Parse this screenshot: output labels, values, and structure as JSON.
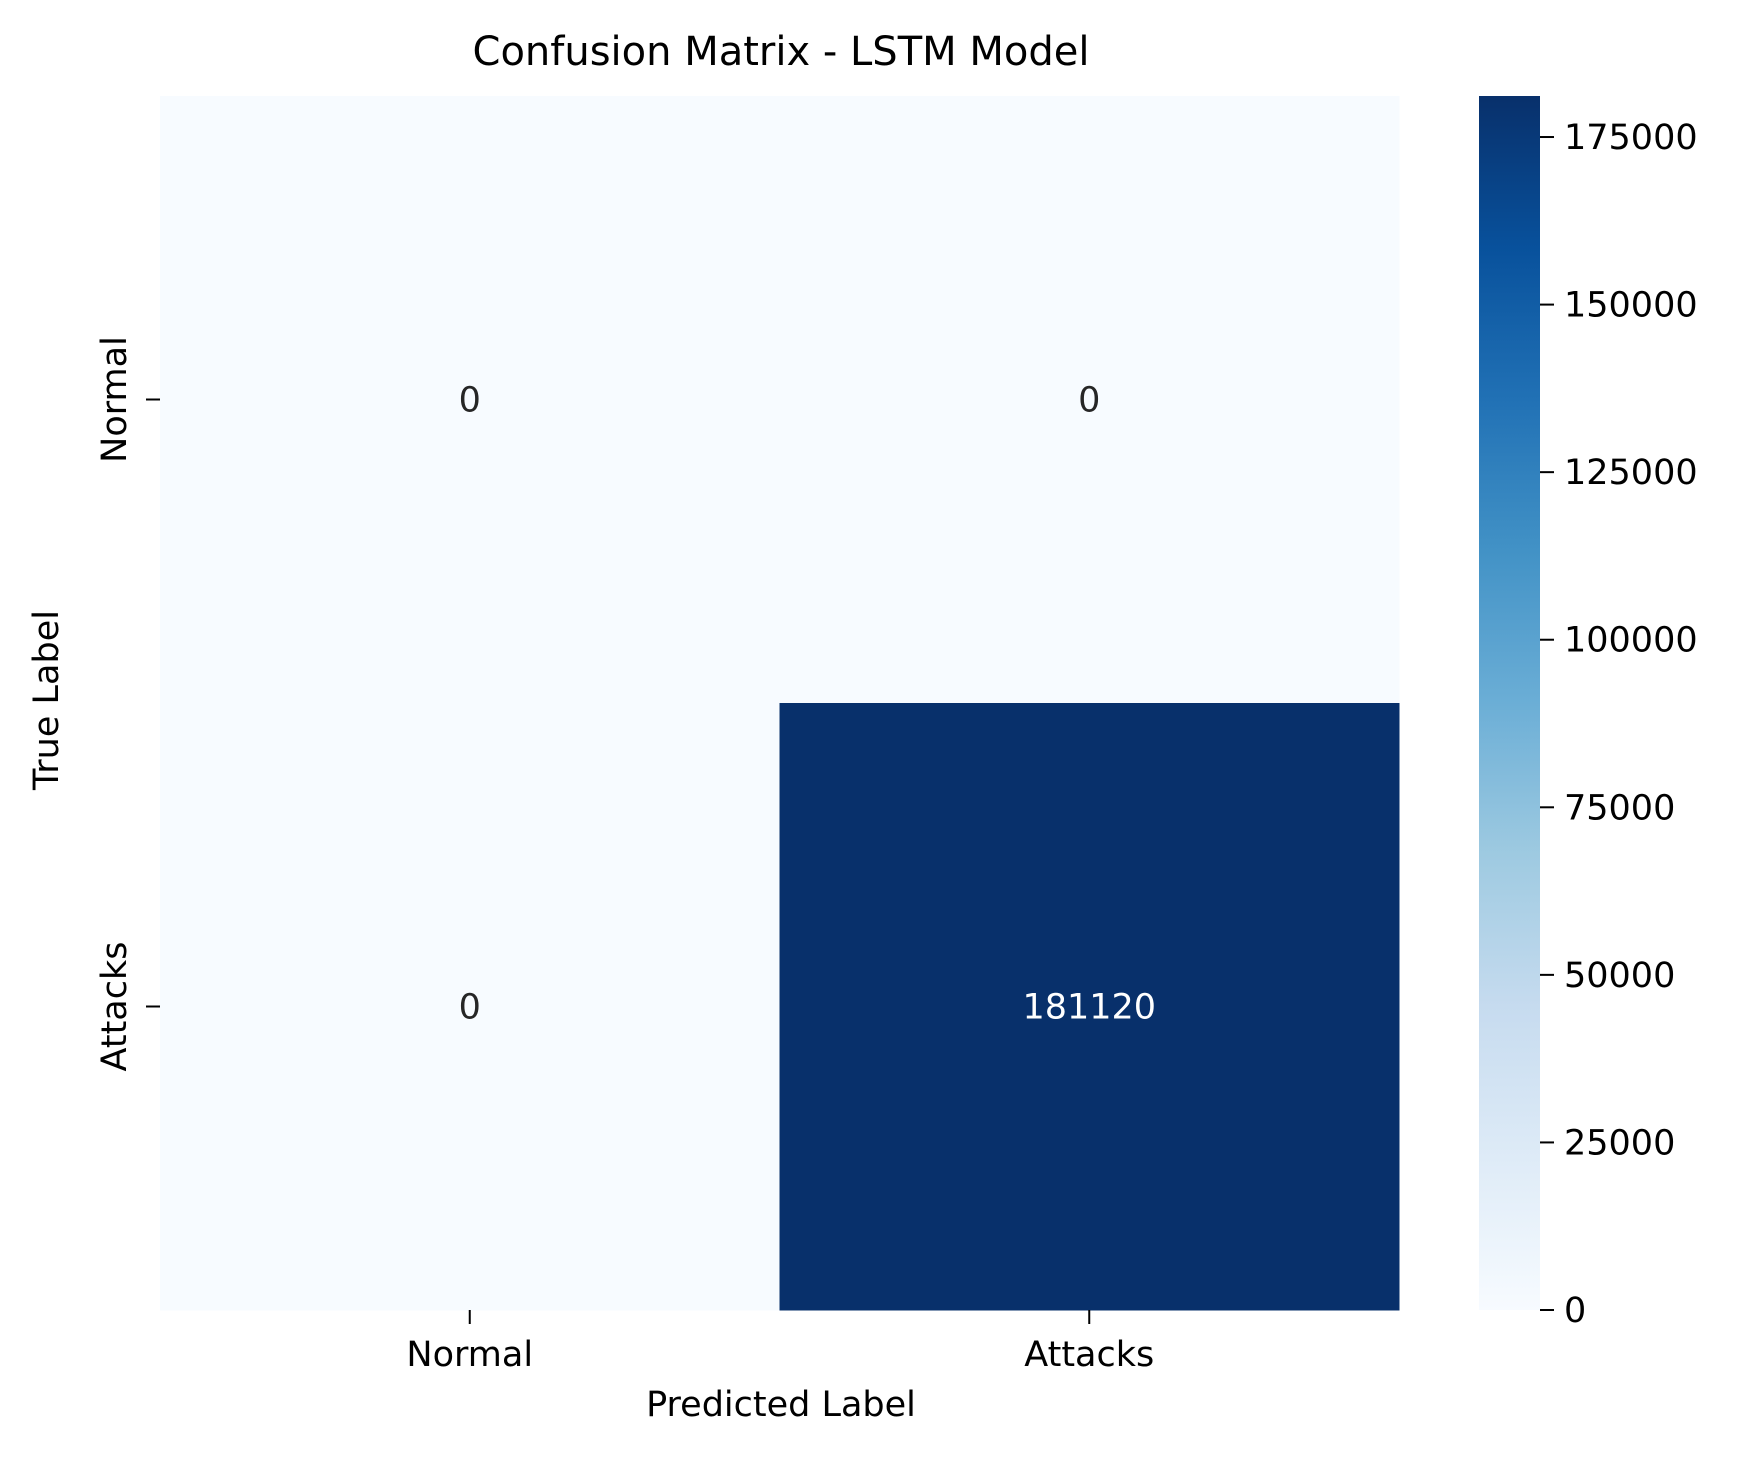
{
  "chart_data": {
    "type": "heatmap",
    "title": "Confusion Matrix - LSTM Model",
    "xlabel": "Predicted Label",
    "ylabel": "True Label",
    "x_categories": [
      "Normal",
      "Attacks"
    ],
    "y_categories": [
      "Normal",
      "Attacks"
    ],
    "values": [
      [
        0,
        0
      ],
      [
        0,
        181120
      ]
    ],
    "colorbar": {
      "colormap": "Blues",
      "range": [
        0,
        181120
      ],
      "ticks": [
        0,
        25000,
        50000,
        75000,
        100000,
        125000,
        150000,
        175000
      ],
      "tick_labels": [
        "0",
        "25000",
        "50000",
        "75000",
        "100000",
        "125000",
        "150000",
        "175000"
      ]
    },
    "colors": {
      "low": "#f7fbff",
      "high": "#08306b",
      "text_on_light": "#262626",
      "text_on_dark": "#ffffff"
    }
  }
}
